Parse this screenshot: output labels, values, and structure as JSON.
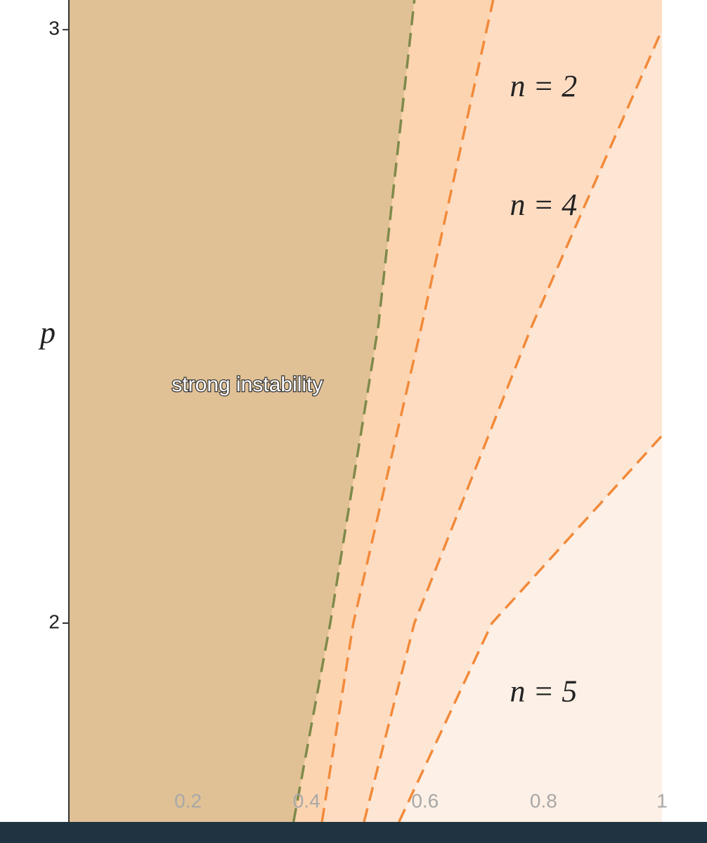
{
  "chart_data": {
    "type": "region",
    "y_label": "p",
    "xlim": [
      0,
      1
    ],
    "ylim": [
      1.665,
      3.05
    ],
    "xticks": [
      0.2,
      0.4,
      0.6,
      0.8,
      1
    ],
    "yticks": [
      2,
      3
    ],
    "background_fill": "#e0c196",
    "series": [
      {
        "color": "#7f8a4a",
        "fill": "#fcd4b0",
        "x": [
          0.378,
          0.44,
          0.521,
          0.582
        ],
        "values": [
          1.665,
          2,
          2.5,
          3.05
        ]
      },
      {
        "color": "#f28a3a",
        "fill": "#fddcc2",
        "x": [
          0.426,
          0.479,
          0.594,
          0.715
        ],
        "values": [
          1.665,
          2,
          2.5,
          3.05
        ]
      },
      {
        "color": "#f28a3a",
        "fill": "#fde6d4",
        "x": [
          0.497,
          0.582,
          0.78,
          1.0
        ],
        "values": [
          1.665,
          2,
          2.5,
          3.0
        ]
      },
      {
        "color": "#f28a3a",
        "fill": "#fdf0e6",
        "x": [
          0.556,
          0.713,
          1.0
        ],
        "values": [
          1.665,
          2,
          2.316
        ]
      }
    ],
    "annotations": [
      {
        "text": "strong instability",
        "x": 0.3,
        "y": 2.4
      },
      {
        "text": "n = 2",
        "x": 0.8,
        "y": 2.9
      },
      {
        "text": "n = 4",
        "x": 0.8,
        "y": 2.7
      },
      {
        "text": "n = 5",
        "x": 0.8,
        "y": 1.88
      }
    ]
  }
}
